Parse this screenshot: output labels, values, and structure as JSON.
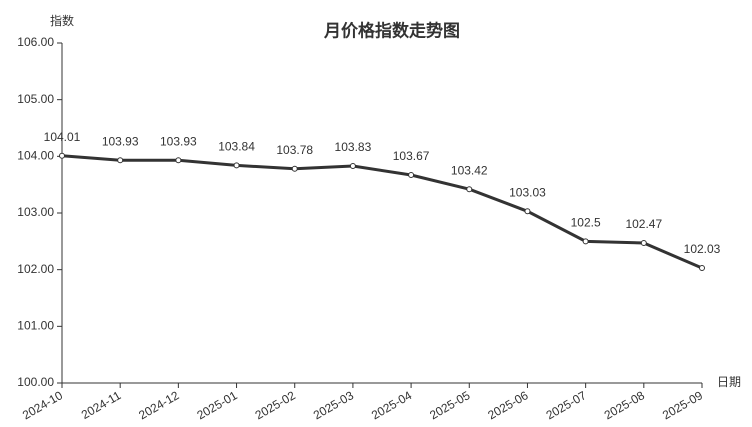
{
  "chart_data": {
    "type": "line",
    "title": "月价格指数走势图",
    "y_label": "指数",
    "x_label": "日期",
    "categories": [
      "2024-10",
      "2024-11",
      "2024-12",
      "2025-01",
      "2025-02",
      "2025-03",
      "2025-04",
      "2025-05",
      "2025-06",
      "2025-07",
      "2025-08",
      "2025-09"
    ],
    "values": [
      104.01,
      103.93,
      103.93,
      103.84,
      103.78,
      103.83,
      103.67,
      103.42,
      103.03,
      102.5,
      102.47,
      102.03
    ],
    "color": "#333333",
    "ylim": [
      100,
      106
    ],
    "yticks": [
      {
        "value": 100,
        "label": "100.00"
      },
      {
        "value": 101,
        "label": "101.00"
      },
      {
        "value": 102,
        "label": "102.00"
      },
      {
        "value": 103,
        "label": "103.00"
      },
      {
        "value": 104,
        "label": "104.00"
      },
      {
        "value": 105,
        "label": "105.00"
      },
      {
        "value": 106,
        "label": "106.00"
      }
    ]
  }
}
